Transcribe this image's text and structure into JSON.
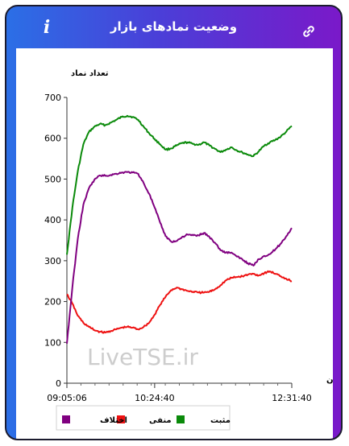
{
  "header": {
    "title": "وضعیت نمادهای بازار",
    "info_icon": "info-icon",
    "link_icon": "link-icon"
  },
  "chart_data": {
    "type": "line",
    "ylabel": "تعداد نماد",
    "xlabel": "زمان",
    "ylim": [
      0,
      700
    ],
    "yticks": [
      0,
      100,
      200,
      300,
      400,
      500,
      600,
      700
    ],
    "xticks": [
      "09:05:06",
      "10:24:40",
      "12:31:40"
    ],
    "grid": false,
    "legend_placement": "bottom",
    "watermark": "LiveTSE.ir",
    "x": [
      "09:05:06",
      "09:10",
      "09:15",
      "09:20",
      "09:25",
      "09:30",
      "09:35",
      "09:40",
      "09:45",
      "09:50",
      "09:55",
      "10:00",
      "10:05",
      "10:10",
      "10:15",
      "10:20",
      "10:24:40",
      "10:30",
      "10:35",
      "10:40",
      "10:45",
      "10:50",
      "10:55",
      "11:00",
      "11:05",
      "11:10",
      "11:15",
      "11:20",
      "11:25",
      "11:30",
      "11:35",
      "11:40",
      "11:45",
      "11:50",
      "11:55",
      "12:00",
      "12:05",
      "12:10",
      "12:15",
      "12:20",
      "12:25",
      "12:31:40"
    ],
    "series": [
      {
        "name": "مثبت",
        "color": "#0a8a0a",
        "values": [
          315,
          430,
          520,
          585,
          615,
          628,
          635,
          632,
          638,
          645,
          652,
          655,
          652,
          645,
          628,
          612,
          598,
          585,
          572,
          575,
          582,
          588,
          590,
          586,
          584,
          590,
          582,
          574,
          566,
          572,
          578,
          570,
          565,
          560,
          556,
          568,
          582,
          590,
          596,
          604,
          616,
          630
        ]
      },
      {
        "name": "منفی",
        "color": "#ee1111",
        "values": [
          218,
          195,
          165,
          148,
          138,
          130,
          126,
          124,
          128,
          132,
          136,
          138,
          136,
          132,
          138,
          148,
          168,
          192,
          212,
          228,
          234,
          230,
          226,
          224,
          222,
          222,
          224,
          230,
          240,
          252,
          258,
          260,
          262,
          266,
          268,
          264,
          270,
          274,
          268,
          262,
          256,
          250
        ]
      },
      {
        "name": "اختلاف",
        "color": "#800080",
        "values": [
          97,
          235,
          355,
          437,
          477,
          498,
          509,
          508,
          510,
          513,
          516,
          517,
          516,
          513,
          490,
          464,
          430,
          393,
          360,
          347,
          348,
          358,
          364,
          362,
          362,
          368,
          358,
          344,
          326,
          320,
          320,
          310,
          303,
          294,
          288,
          304,
          312,
          316,
          328,
          342,
          360,
          380
        ]
      }
    ]
  }
}
